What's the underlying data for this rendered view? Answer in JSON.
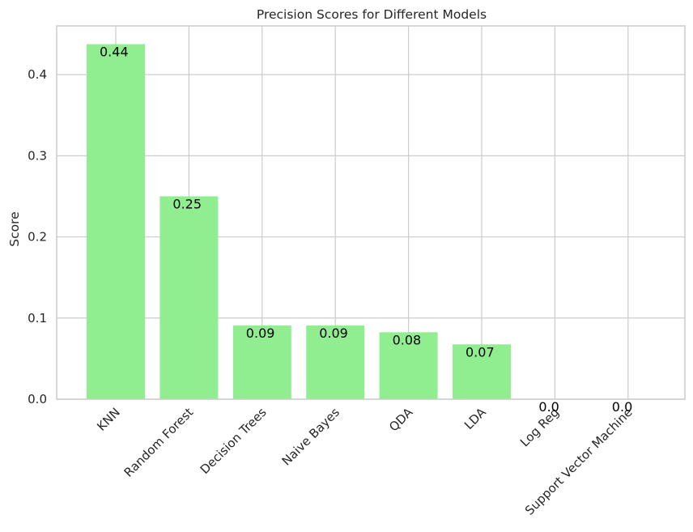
{
  "chart_data": {
    "type": "bar",
    "title": "Precision Scores for Different Models",
    "xlabel": "",
    "ylabel": "Score",
    "categories": [
      "KNN",
      "Random Forest",
      "Decision Trees",
      "Naive Bayes",
      "QDA",
      "LDA",
      "Log Reg",
      "Support Vector Machine"
    ],
    "values": [
      0.4375,
      0.25,
      0.0909,
      0.0909,
      0.0825,
      0.0676,
      0.0,
      0.0
    ],
    "data_labels": [
      "0.44",
      "0.25",
      "0.09",
      "0.09",
      "0.08",
      "0.07",
      "0.0",
      "0.0"
    ],
    "yticks": [
      "0.0",
      "0.1",
      "0.2",
      "0.3",
      "0.4"
    ],
    "ylim": [
      0,
      0.46
    ],
    "grid": true,
    "bar_color": "#90ee90"
  }
}
